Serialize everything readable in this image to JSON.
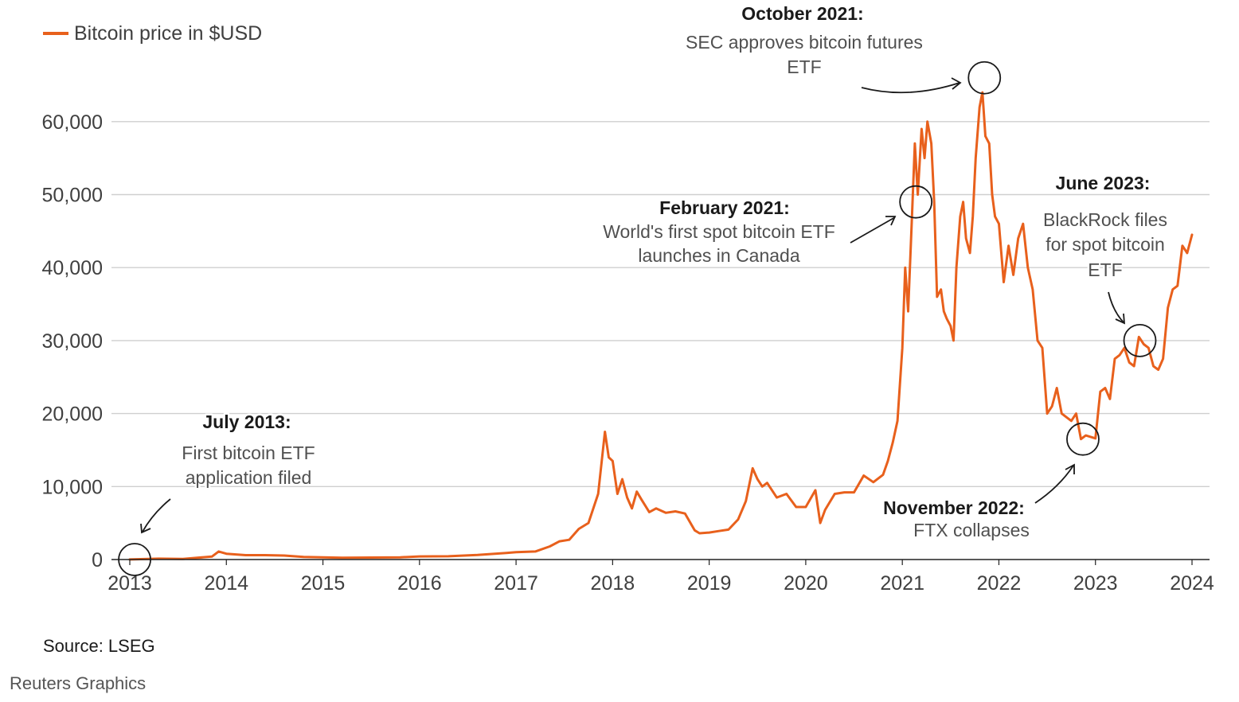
{
  "colors": {
    "series": "#e8601c",
    "grid": "#cfcfcf",
    "axis": "#222222",
    "annotation": "#1a1a1a"
  },
  "chart_data": {
    "type": "line",
    "title": "",
    "xlabel": "",
    "ylabel": "",
    "ylim": [
      0,
      70000
    ],
    "xlim": [
      2013.0,
      2024.0
    ],
    "grid": true,
    "legend": {
      "position": "top-left",
      "entries": [
        "Bitcoin price in $USD"
      ]
    },
    "y_ticks": [
      0,
      10000,
      20000,
      30000,
      40000,
      50000,
      60000
    ],
    "y_tick_labels": [
      "0",
      "10,000",
      "20,000",
      "30,000",
      "40,000",
      "50,000",
      "60,000"
    ],
    "x_ticks": [
      2013,
      2014,
      2015,
      2016,
      2017,
      2018,
      2019,
      2020,
      2021,
      2022,
      2023,
      2024
    ],
    "x_tick_labels": [
      "2013",
      "2014",
      "2015",
      "2016",
      "2017",
      "2018",
      "2019",
      "2020",
      "2021",
      "2022",
      "2023",
      "2024"
    ],
    "series": [
      {
        "name": "Bitcoin price in $USD",
        "x": [
          2013.0,
          2013.3,
          2013.55,
          2013.85,
          2013.92,
          2014.0,
          2014.2,
          2014.4,
          2014.6,
          2014.8,
          2015.0,
          2015.2,
          2015.5,
          2015.8,
          2016.0,
          2016.3,
          2016.6,
          2016.9,
          2017.0,
          2017.2,
          2017.35,
          2017.45,
          2017.55,
          2017.65,
          2017.75,
          2017.85,
          2017.92,
          2017.96,
          2018.0,
          2018.05,
          2018.1,
          2018.15,
          2018.2,
          2018.25,
          2018.3,
          2018.38,
          2018.45,
          2018.55,
          2018.65,
          2018.75,
          2018.85,
          2018.9,
          2019.0,
          2019.1,
          2019.2,
          2019.3,
          2019.38,
          2019.45,
          2019.5,
          2019.55,
          2019.6,
          2019.7,
          2019.8,
          2019.9,
          2020.0,
          2020.1,
          2020.15,
          2020.2,
          2020.3,
          2020.4,
          2020.5,
          2020.6,
          2020.7,
          2020.8,
          2020.85,
          2020.9,
          2020.95,
          2021.0,
          2021.03,
          2021.06,
          2021.1,
          2021.13,
          2021.16,
          2021.2,
          2021.23,
          2021.26,
          2021.3,
          2021.33,
          2021.36,
          2021.4,
          2021.43,
          2021.46,
          2021.5,
          2021.53,
          2021.56,
          2021.6,
          2021.63,
          2021.66,
          2021.7,
          2021.73,
          2021.76,
          2021.8,
          2021.83,
          2021.86,
          2021.9,
          2021.93,
          2021.96,
          2022.0,
          2022.05,
          2022.1,
          2022.15,
          2022.2,
          2022.25,
          2022.3,
          2022.35,
          2022.4,
          2022.45,
          2022.5,
          2022.55,
          2022.6,
          2022.65,
          2022.7,
          2022.75,
          2022.8,
          2022.85,
          2022.9,
          2022.95,
          2023.0,
          2023.05,
          2023.1,
          2023.15,
          2023.2,
          2023.25,
          2023.3,
          2023.35,
          2023.4,
          2023.45,
          2023.5,
          2023.55,
          2023.6,
          2023.65,
          2023.7,
          2023.75,
          2023.8,
          2023.85,
          2023.9,
          2023.95,
          2024.0
        ],
        "values": [
          13,
          120,
          90,
          400,
          1100,
          800,
          600,
          600,
          550,
          350,
          300,
          250,
          270,
          300,
          430,
          450,
          620,
          900,
          1000,
          1100,
          1800,
          2500,
          2700,
          4200,
          5000,
          9000,
          17500,
          14000,
          13500,
          9000,
          11000,
          8500,
          7000,
          9300,
          8200,
          6500,
          7000,
          6400,
          6600,
          6300,
          4000,
          3600,
          3700,
          3900,
          4100,
          5500,
          8000,
          12500,
          11000,
          10000,
          10500,
          8500,
          9000,
          7200,
          7200,
          9500,
          5000,
          6800,
          9000,
          9200,
          9200,
          11500,
          10600,
          11600,
          13500,
          16000,
          19000,
          29000,
          40000,
          34000,
          47000,
          57000,
          50000,
          59000,
          55000,
          60000,
          57000,
          49000,
          36000,
          37000,
          34000,
          33000,
          32000,
          30000,
          40000,
          47000,
          49000,
          44000,
          42000,
          47000,
          55000,
          62000,
          64000,
          58000,
          57000,
          50000,
          47000,
          46000,
          38000,
          43000,
          39000,
          44000,
          46000,
          40000,
          37000,
          30000,
          29000,
          20000,
          21000,
          23500,
          20000,
          19500,
          19000,
          20000,
          16500,
          17000,
          16800,
          16600,
          23000,
          23500,
          22000,
          27500,
          28000,
          29000,
          27000,
          26500,
          30500,
          29500,
          29000,
          26500,
          26000,
          27500,
          34500,
          37000,
          37500,
          43000,
          42000,
          44500
        ]
      }
    ],
    "annotations": [
      {
        "title": "July 2013:",
        "text": [
          "First bitcoin ETF",
          "application filed"
        ],
        "x": 2013.05,
        "y": 0
      },
      {
        "title": "October 2021:",
        "text": [
          "SEC approves bitcoin futures",
          "ETF"
        ],
        "x": 2021.85,
        "y": 66000
      },
      {
        "title": "February 2021:",
        "text": [
          "World's first spot bitcoin ETF",
          "launches in Canada"
        ],
        "x": 2021.14,
        "y": 49000
      },
      {
        "title": "June 2023:",
        "text": [
          "BlackRock files",
          "for spot bitcoin",
          "ETF"
        ],
        "x": 2023.46,
        "y": 30000
      },
      {
        "title": "November 2022:",
        "text": [
          "FTX collapses"
        ],
        "x": 2022.87,
        "y": 16500
      }
    ]
  },
  "footer": {
    "source": "Source: LSEG",
    "credit": "Reuters Graphics"
  }
}
